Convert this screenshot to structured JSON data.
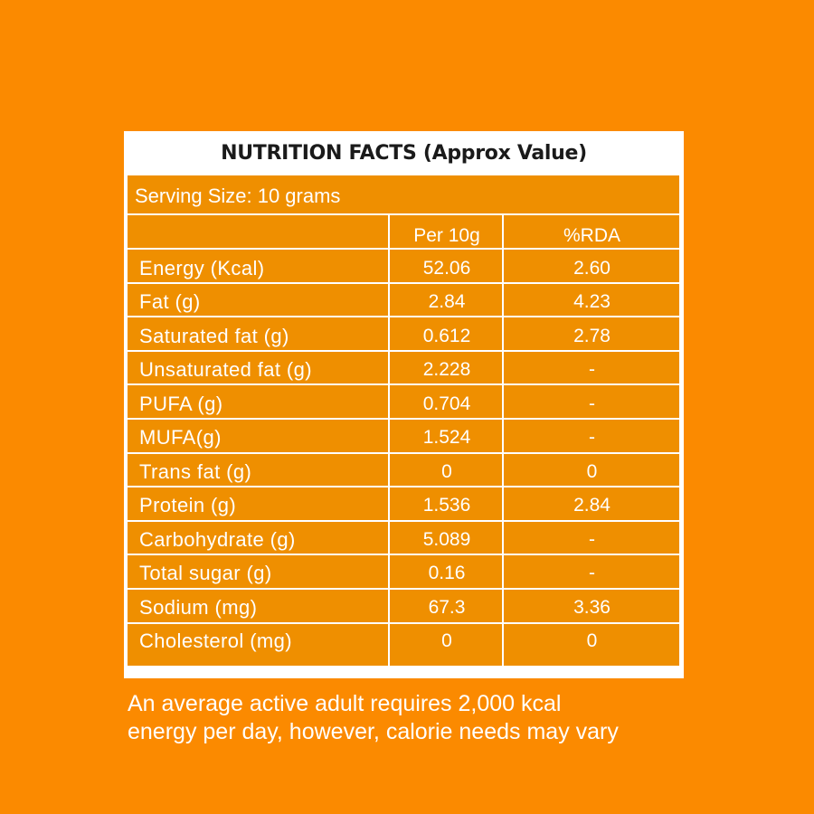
{
  "title": "NUTRITION FACTS (Approx Value)",
  "serving_size": "Serving Size: 10 grams",
  "columns": {
    "per": "Per 10g",
    "rda": "%RDA"
  },
  "rows": [
    {
      "label": "Energy (Kcal)",
      "per": "52.06",
      "rda": "2.60"
    },
    {
      "label": "Fat (g)",
      "per": "2.84",
      "rda": "4.23"
    },
    {
      "label": "Saturated fat (g)",
      "per": "0.612",
      "rda": "2.78"
    },
    {
      "label": "Unsaturated fat (g)",
      "per": "2.228",
      "rda": "-"
    },
    {
      "label": "PUFA (g)",
      "per": "0.704",
      "rda": "-"
    },
    {
      "label": "MUFA(g)",
      "per": "1.524",
      "rda": "-"
    },
    {
      "label": "Trans fat  (g)",
      "per": "0",
      "rda": "0"
    },
    {
      "label": "Protein (g)",
      "per": "1.536",
      "rda": "2.84"
    },
    {
      "label": "Carbohydrate (g)",
      "per": "5.089",
      "rda": "-"
    },
    {
      "label": "Total sugar (g)",
      "per": "0.16",
      "rda": "-"
    },
    {
      "label": "Sodium (mg)",
      "per": "67.3",
      "rda": "3.36"
    },
    {
      "label": "Cholesterol (mg)",
      "per": "0",
      "rda": "0"
    }
  ],
  "footnote_lines": [
    "An average active adult requires 2,000 kcal",
    "energy per day, however, calorie needs may vary"
  ],
  "colors": {
    "background": "#fb8a00",
    "table_fill": "#ef8f00",
    "panel": "#ffffff",
    "title_text": "#1a1a1a",
    "text": "#ffffff"
  }
}
